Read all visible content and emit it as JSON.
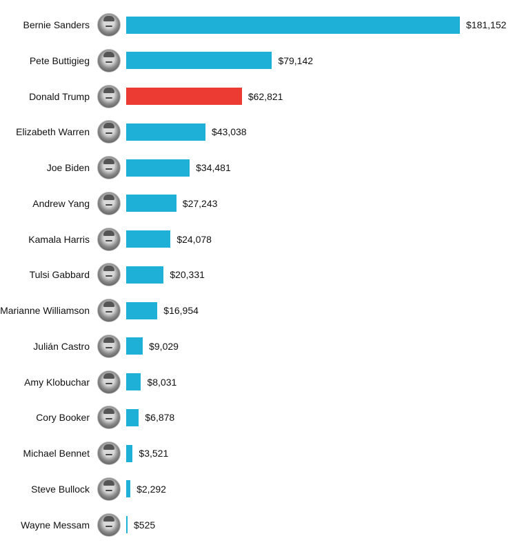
{
  "chart_data": {
    "type": "bar",
    "orientation": "horizontal",
    "categories": [
      "Bernie Sanders",
      "Pete Buttigieg",
      "Donald Trump",
      "Elizabeth Warren",
      "Joe Biden",
      "Andrew Yang",
      "Kamala Harris",
      "Tulsi Gabbard",
      "Marianne Williamson",
      "Julián Castro",
      "Amy Klobuchar",
      "Cory Booker",
      "Michael Bennet",
      "Steve Bullock",
      "Wayne Messam"
    ],
    "values": [
      181152,
      79142,
      62821,
      43038,
      34481,
      27243,
      24078,
      20331,
      16954,
      9029,
      8031,
      6878,
      3521,
      2292,
      525
    ],
    "value_labels": [
      "$181,152",
      "$79,142",
      "$62,821",
      "$43,038",
      "$34,481",
      "$27,243",
      "$24,078",
      "$20,331",
      "$16,954",
      "$9,029",
      "$8,031",
      "$6,878",
      "$3,521",
      "$2,292",
      "$525"
    ],
    "colors": {
      "default": "#1fb0d8",
      "highlight": "#ec3b33",
      "highlight_category": "Donald Trump"
    },
    "grid": false,
    "legend": "none",
    "icons": "candidate-portrait-icon"
  }
}
